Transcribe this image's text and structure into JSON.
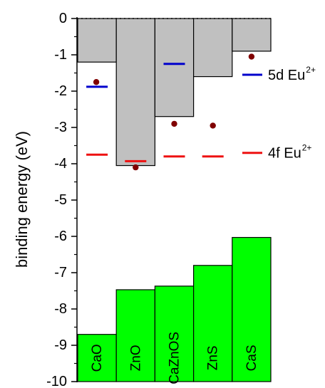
{
  "chart_data": {
    "type": "bar",
    "ylabel": "binding energy (eV)",
    "ylim": [
      -10,
      0
    ],
    "yticks": [
      0,
      -1,
      -2,
      -3,
      -4,
      -5,
      -6,
      -7,
      -8,
      -9,
      -10
    ],
    "yticks_labels": [
      "0",
      "-1",
      "-2",
      "-3",
      "-4",
      "-5",
      "-6",
      "-7",
      "-8",
      "-9",
      "-10"
    ],
    "categories": [
      "CaO",
      "ZnO",
      "CaZnOS",
      "ZnS",
      "CaS"
    ],
    "conduction_band_bottom": [
      -1.2,
      -4.05,
      -2.7,
      -1.6,
      -0.9
    ],
    "valence_band_top": [
      -8.7,
      -7.47,
      -7.37,
      -6.8,
      -6.03
    ],
    "series": [
      {
        "name": "5d Eu",
        "superscript": "2+",
        "color": "#0000cc",
        "marker": "dash",
        "values": [
          -1.88,
          null,
          -1.25,
          null,
          null
        ]
      },
      {
        "name": "4f Eu",
        "superscript": "2+",
        "color": "#ee1111",
        "marker": "dash",
        "values": [
          -3.75,
          -3.93,
          -3.8,
          -3.8,
          null
        ]
      },
      {
        "name": "",
        "color": "#800000",
        "marker": "dot",
        "values": [
          -1.75,
          -4.1,
          -2.9,
          -2.95,
          -1.05
        ]
      }
    ],
    "colors": {
      "conduction_band": "#c0c0c0",
      "valence_band": "#00ff00",
      "outline": "#000000"
    }
  }
}
